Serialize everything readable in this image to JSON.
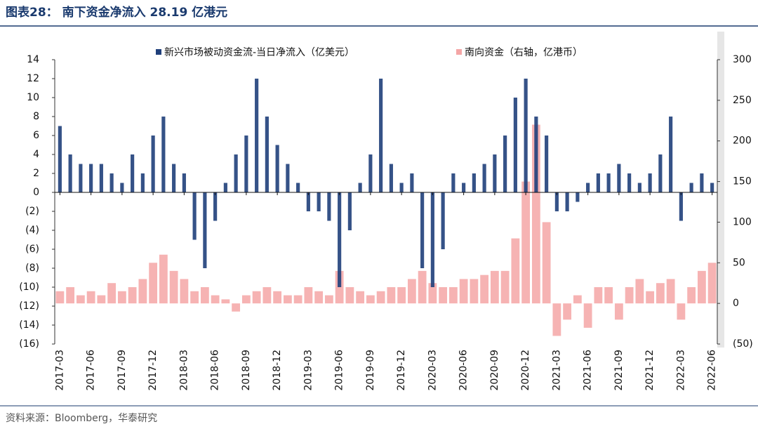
{
  "chart_data": {
    "type": "bar",
    "title": "图表28： 南下资金净流入 28.19 亿港元",
    "source": "资料来源：Bloomberg，华泰研究",
    "categories": [
      "2017-03",
      null,
      null,
      "2017-06",
      null,
      null,
      "2017-09",
      null,
      null,
      "2017-12",
      null,
      null,
      "2018-03",
      null,
      null,
      "2018-06",
      null,
      null,
      "2018-09",
      null,
      null,
      "2018-12",
      null,
      null,
      "2019-03",
      null,
      null,
      "2019-06",
      null,
      null,
      "2019-09",
      null,
      null,
      "2019-12",
      null,
      null,
      "2020-03",
      null,
      null,
      "2020-06",
      null,
      null,
      "2020-09",
      null,
      null,
      "2020-12",
      null,
      null,
      "2021-03",
      null,
      null,
      "2021-06",
      null,
      null,
      "2021-09",
      null,
      null,
      "2021-12",
      null,
      null,
      "2022-03",
      null,
      null,
      "2022-06"
    ],
    "series": [
      {
        "name": "南向资金（右轴，亿港币）",
        "color": "#f4a6a6",
        "axis": "y2",
        "values": [
          15,
          20,
          10,
          15,
          10,
          25,
          15,
          20,
          30,
          50,
          60,
          40,
          30,
          15,
          20,
          10,
          5,
          -10,
          10,
          15,
          20,
          15,
          10,
          10,
          20,
          15,
          10,
          40,
          20,
          15,
          10,
          15,
          20,
          20,
          30,
          40,
          25,
          20,
          20,
          30,
          30,
          35,
          40,
          40,
          80,
          150,
          220,
          100,
          -40,
          -20,
          10,
          -30,
          20,
          20,
          -20,
          20,
          30,
          15,
          25,
          30,
          -20,
          20,
          40,
          50
        ]
      },
      {
        "name": "新兴市场被动资金流-当日净流入（亿美元）",
        "color": "#1f3f7a",
        "axis": "y",
        "values": [
          7,
          4,
          3,
          3,
          3,
          2,
          1,
          4,
          2,
          6,
          8,
          3,
          2,
          -5,
          -8,
          -3,
          1,
          4,
          6,
          12,
          8,
          5,
          3,
          1,
          -2,
          -2,
          -3,
          -10,
          -4,
          1,
          4,
          12,
          3,
          1,
          2,
          -8,
          -10,
          -6,
          2,
          1,
          2,
          3,
          4,
          6,
          10,
          12,
          8,
          6,
          -2,
          -2,
          -1,
          1,
          2,
          2,
          3,
          2,
          1,
          2,
          4,
          8,
          -3,
          1,
          2,
          1
        ]
      }
    ],
    "ylim": [
      -16,
      14
    ],
    "yticks": [
      14,
      12,
      10,
      8,
      6,
      4,
      2,
      0,
      {
        "value": -2,
        "label": "(2)"
      },
      {
        "value": -4,
        "label": "(4)"
      },
      {
        "value": -6,
        "label": "(6)"
      },
      {
        "value": -8,
        "label": "(8)"
      },
      {
        "value": -10,
        "label": "(10)"
      },
      {
        "value": -12,
        "label": "(12)"
      },
      {
        "value": -14,
        "label": "(14)"
      },
      {
        "value": -16,
        "label": "(16)"
      }
    ],
    "y2lim": [
      -50,
      300
    ],
    "y2ticks": [
      300,
      250,
      200,
      150,
      100,
      50,
      0,
      {
        "value": -50,
        "label": "(50)"
      }
    ],
    "legend": "top"
  }
}
